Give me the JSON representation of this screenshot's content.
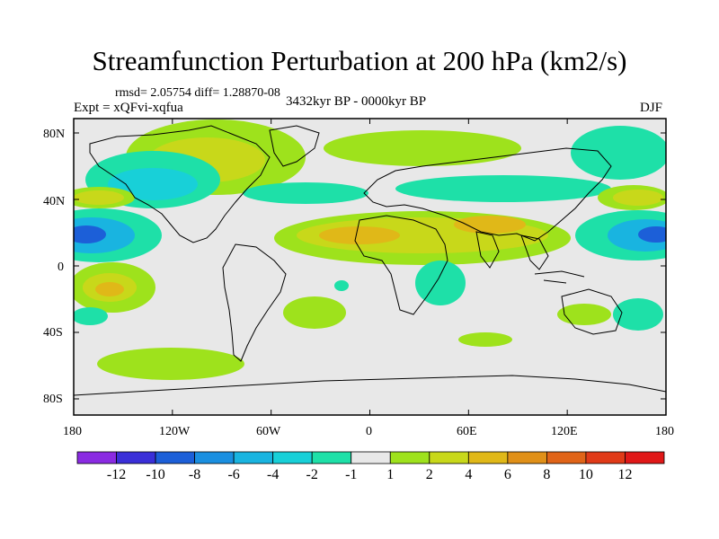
{
  "title": "Streamfunction Perturbation at 200 hPa (km2/s)",
  "stats_line": "rmsd= 2.05754 diff= 1.28870-08",
  "experiment": "Expt = xQFvi-xqfua",
  "period": "3432kyr BP - 0000kyr BP",
  "season": "DJF",
  "lat_labels": [
    "80N",
    "40N",
    "0",
    "40S",
    "80S"
  ],
  "lon_labels": [
    "180",
    "120W",
    "60W",
    "0",
    "60E",
    "120E",
    "180"
  ],
  "colorbar": {
    "labels": [
      "-12",
      "-10",
      "-8",
      "-6",
      "-4",
      "-2",
      "-1",
      "1",
      "2",
      "4",
      "6",
      "8",
      "10",
      "12"
    ],
    "colors": [
      "#8a2be2",
      "#3a2fd8",
      "#1c5fd8",
      "#1a8fe0",
      "#19b4e0",
      "#18d0d8",
      "#1ee0a8",
      "#e8e8e8",
      "#9ee21c",
      "#c8d81a",
      "#e0b818",
      "#e09018",
      "#e06418",
      "#e03a18",
      "#e01818"
    ]
  },
  "colors": {
    "land_bg": "#e8e8e8",
    "light_green": "#9ee21c",
    "olive": "#c8d81a",
    "orange": "#e0b818",
    "cyan_green": "#1ee0a8",
    "cyan": "#18d0d8",
    "sky": "#19b4e0",
    "blue": "#1a8fe0",
    "dark_blue": "#1c5fd8",
    "deep_blue": "#3a2fd8"
  }
}
